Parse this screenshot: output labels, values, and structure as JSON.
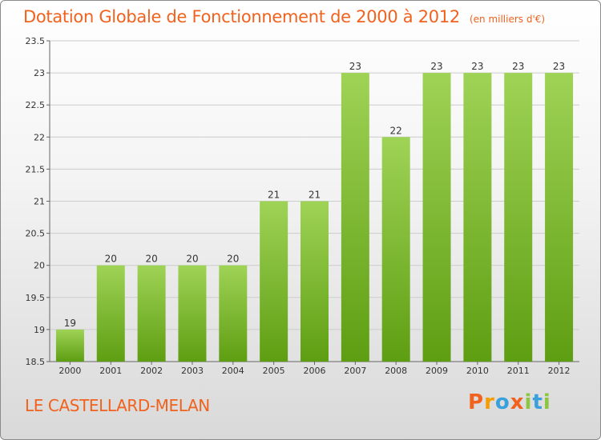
{
  "title": "Dotation Globale de Fonctionnement de 2000 à 2012",
  "unit_note": "(en milliers d'€)",
  "location": "LE CASTELLARD-MELAN",
  "logo": {
    "text": "Proxiti",
    "colors": [
      "#f0621e",
      "#f59c00",
      "#3aa0dc",
      "#f0621e",
      "#8cc63f",
      "#3aa0dc",
      "#8cc63f"
    ]
  },
  "colors": {
    "accent": "#f0621e",
    "bar_light": "#9fd356",
    "bar_dark": "#5e9e12",
    "grid": "#cccccc"
  },
  "chart_data": {
    "type": "bar",
    "title": "Dotation Globale de Fonctionnement de 2000 à 2012",
    "xlabel": "",
    "ylabel": "en milliers d'€",
    "categories": [
      "2000",
      "2001",
      "2002",
      "2003",
      "2004",
      "2005",
      "2006",
      "2007",
      "2008",
      "2009",
      "2010",
      "2011",
      "2012"
    ],
    "values": [
      19,
      20,
      20,
      20,
      20,
      21,
      21,
      23,
      22,
      23,
      23,
      23,
      23
    ],
    "labels": [
      "19",
      "20",
      "20",
      "20",
      "20",
      "21",
      "21",
      "23",
      "22",
      "23",
      "23",
      "23",
      "23"
    ],
    "ylim": [
      18.5,
      23.5
    ],
    "yticks": [
      18.5,
      19,
      19.5,
      20,
      20.5,
      21,
      21.5,
      22,
      22.5,
      23,
      23.5
    ],
    "ytick_labels": [
      "18.5",
      "19",
      "19.5",
      "20",
      "20.5",
      "21",
      "21.5",
      "22",
      "22.5",
      "23",
      "23.5"
    ],
    "grid": true
  }
}
